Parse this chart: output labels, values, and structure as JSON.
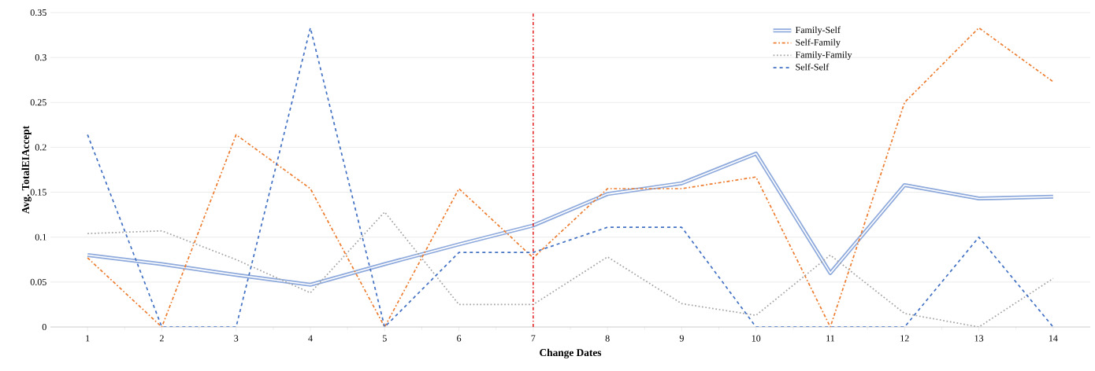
{
  "chart_data": {
    "type": "line",
    "xlabel": "Change Dates",
    "ylabel": "Avg. TotalEIAccept",
    "x": [
      1,
      2,
      3,
      4,
      5,
      6,
      7,
      8,
      9,
      10,
      11,
      12,
      13,
      14
    ],
    "xlim": [
      0.5,
      14.5
    ],
    "xticks": [
      1,
      2,
      3,
      4,
      5,
      6,
      7,
      8,
      9,
      10,
      11,
      12,
      13,
      14
    ],
    "ylim": [
      0,
      0.35
    ],
    "yticks": [
      0,
      0.05,
      0.1,
      0.15,
      0.2,
      0.25,
      0.3,
      0.35
    ],
    "grid": "y",
    "legend": "top right",
    "marker": "none",
    "series": [
      {
        "name": "Family-Self",
        "color": "#8faadc",
        "line_style": "solid",
        "values": [
          0.08,
          0.07,
          0.058,
          0.047,
          0.07,
          0.092,
          0.113,
          0.148,
          0.16,
          0.193,
          0.06,
          0.158,
          0.143,
          0.145
        ]
      },
      {
        "name": "Self-Family",
        "color": "#ed7d31",
        "line_style": "dashdot",
        "values": [
          0.077,
          0,
          0.214,
          0.154,
          0,
          0.154,
          0.077,
          0.154,
          0.154,
          0.167,
          0,
          0.25,
          0.333,
          0.273
        ]
      },
      {
        "name": "Family-Family",
        "color": "#a5a5a5",
        "line_style": "dotted",
        "values": [
          0.104,
          0.107,
          0.075,
          0.038,
          0.128,
          0.025,
          0.025,
          0.078,
          0.026,
          0.013,
          0.08,
          0.015,
          0,
          0.054
        ]
      },
      {
        "name": "Self-Self",
        "color": "#4472c4",
        "line_style": "dashed",
        "values": [
          0.214,
          0,
          0,
          0.333,
          0,
          0.083,
          0.083,
          0.111,
          0.111,
          0,
          0,
          0,
          0.1,
          0
        ]
      }
    ],
    "ref_lines": [
      {
        "axis": "x",
        "value": 7,
        "color": "#e00000",
        "line_style": "dashdot"
      }
    ]
  }
}
